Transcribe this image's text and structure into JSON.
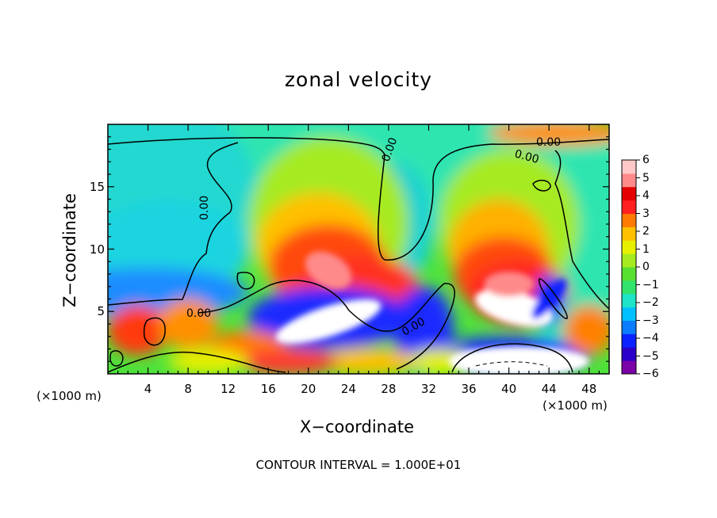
{
  "chart_data": {
    "type": "heatmap",
    "title": "zonal velocity",
    "xlabel": "X−coordinate",
    "ylabel": "Z−coordinate",
    "x_unit": "(×1000 m)",
    "x_ticks": [
      4,
      8,
      12,
      16,
      20,
      24,
      28,
      32,
      36,
      40,
      44,
      48
    ],
    "y_ticks": [
      5,
      10,
      15
    ],
    "xlim": [
      0,
      50
    ],
    "ylim": [
      0,
      20
    ],
    "colorbar": {
      "ticks": [
        "6",
        "5",
        "4",
        "3",
        "2",
        "1",
        "0",
        "−1",
        "−2",
        "−3",
        "−4",
        "−5",
        "−6"
      ],
      "range": [
        -6,
        6
      ],
      "colors": [
        "#7a00a8",
        "#2a00c8",
        "#0a22ff",
        "#0a7cff",
        "#00c0ff",
        "#1de3c8",
        "#30e36a",
        "#58e030",
        "#a6ea20",
        "#e6f000",
        "#ffc000",
        "#ff7a00",
        "#ff2020",
        "#e40000",
        "#ff8a8a",
        "#ffc8c8"
      ]
    },
    "contour_labels": [
      "0.00",
      "0.00",
      "0.00",
      "0.00",
      "0.00",
      "0.00"
    ],
    "features": [
      {
        "kind": "max",
        "x": 21,
        "z": 8,
        "value": 6
      },
      {
        "kind": "max",
        "x": 40,
        "z": 6.5,
        "value": 6
      },
      {
        "kind": "min",
        "x": 22,
        "z": 4,
        "value": -6
      },
      {
        "kind": "min",
        "x": 40,
        "z": 1.2,
        "value": -6
      },
      {
        "kind": "min",
        "x": 33,
        "z": 3.5,
        "value": -4
      },
      {
        "kind": "min",
        "x": 44,
        "z": 6,
        "value": -4
      }
    ]
  },
  "footer": "CONTOUR INTERVAL = 1.000E+01"
}
